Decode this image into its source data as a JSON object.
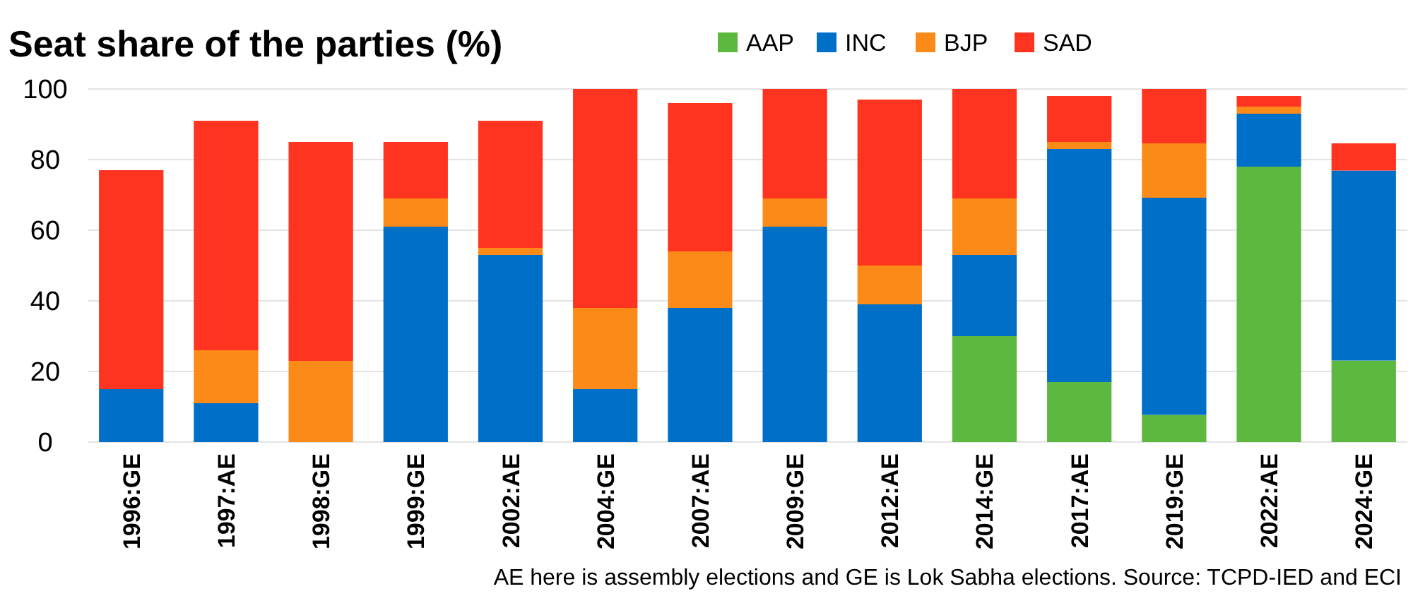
{
  "chart_data": {
    "type": "bar",
    "title": "Seat share of the parties (%)",
    "stacked": true,
    "legend": "top",
    "grid": "y",
    "categories": [
      "1996:GE",
      "1997:AE",
      "1998:GE",
      "1999:GE",
      "2002:AE",
      "2004:GE",
      "2007:AE",
      "2009:GE",
      "2012:AE",
      "2014:GE",
      "2017:AE",
      "2019:GE",
      "2022:AE",
      "2024:GE"
    ],
    "series": [
      {
        "name": "AAP",
        "color": "#5cb83f",
        "values": [
          0,
          0,
          0,
          0,
          0,
          0,
          0,
          0,
          0,
          30,
          17,
          7.7,
          78,
          23.1
        ]
      },
      {
        "name": "INC",
        "color": "#006fc8",
        "values": [
          15,
          11,
          0,
          61,
          53,
          15,
          38,
          61,
          39,
          23,
          66,
          61.5,
          15,
          53.8
        ]
      },
      {
        "name": "BJP",
        "color": "#fb8a18",
        "values": [
          0,
          15,
          23,
          8,
          2,
          23,
          16,
          8,
          11,
          16,
          2,
          15.4,
          2,
          0
        ]
      },
      {
        "name": "SAD",
        "color": "#fe3320",
        "values": [
          62,
          65,
          62,
          16,
          36,
          62,
          42,
          31,
          47,
          31,
          13,
          15.4,
          3,
          7.7
        ]
      }
    ],
    "ylim": [
      0,
      100
    ],
    "yticks": [
      0,
      20,
      40,
      60,
      80,
      100
    ],
    "annotations": [
      "AE here is assembly elections and GE is Lok Sabha elections. Source: TCPD-IED and ECI"
    ]
  }
}
